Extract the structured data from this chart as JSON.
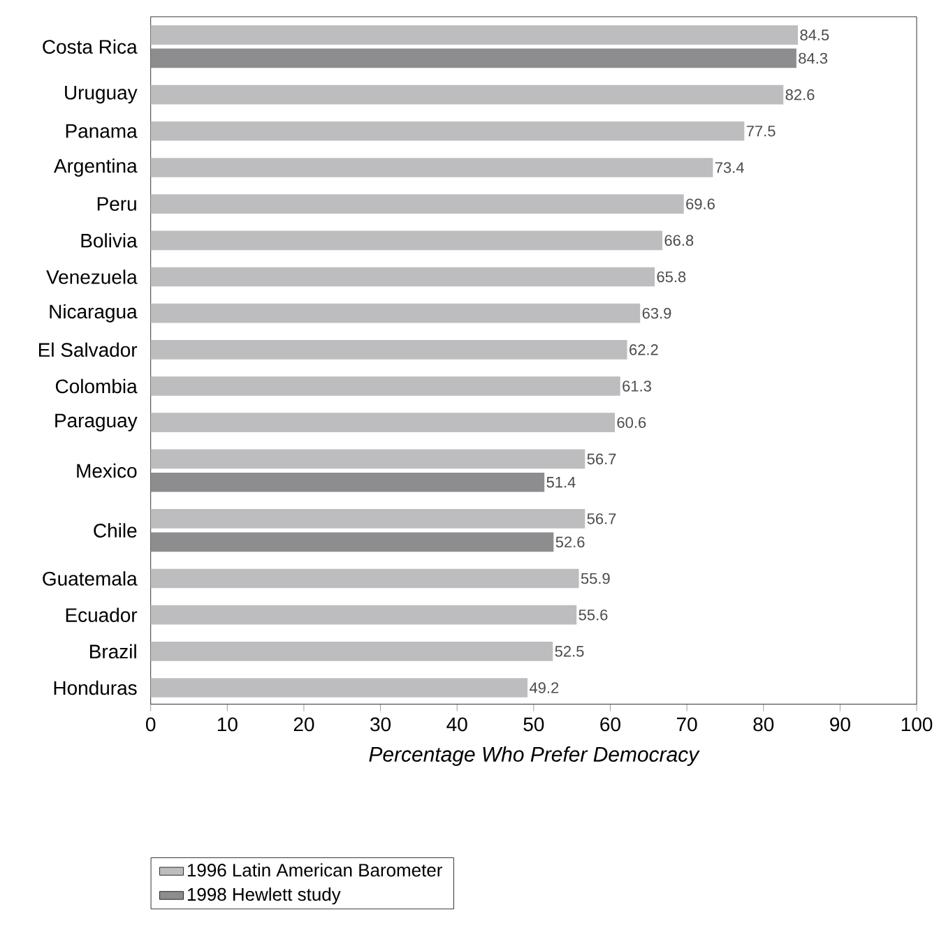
{
  "chart_data": {
    "type": "bar",
    "orientation": "horizontal",
    "categories": [
      "Costa Rica",
      "Uruguay",
      "Panama",
      "Argentina",
      "Peru",
      "Bolivia",
      "Venezuela",
      "Nicaragua",
      "El Salvador",
      "Colombia",
      "Paraguay",
      "Mexico",
      "Chile",
      "Guatemala",
      "Ecuador",
      "Brazil",
      "Honduras"
    ],
    "series": [
      {
        "name": "1996 Latin American Barometer",
        "color": "#bdbdbf",
        "values": [
          84.5,
          82.6,
          77.5,
          73.4,
          69.6,
          66.8,
          65.8,
          63.9,
          62.2,
          61.3,
          60.6,
          56.7,
          56.7,
          55.9,
          55.6,
          52.5,
          49.2
        ]
      },
      {
        "name": "1998 Hewlett study",
        "color": "#8d8d8f",
        "values": [
          84.3,
          null,
          null,
          null,
          null,
          null,
          null,
          null,
          null,
          null,
          null,
          51.4,
          52.6,
          null,
          null,
          null,
          null
        ]
      }
    ],
    "xlabel": "Percentage Who Prefer Democracy",
    "xlim": [
      0,
      100
    ],
    "xticks": [
      0,
      10,
      20,
      30,
      40,
      50,
      60,
      70,
      80,
      90,
      100
    ],
    "data_labels": true,
    "grid": false,
    "legend": "bottom"
  }
}
